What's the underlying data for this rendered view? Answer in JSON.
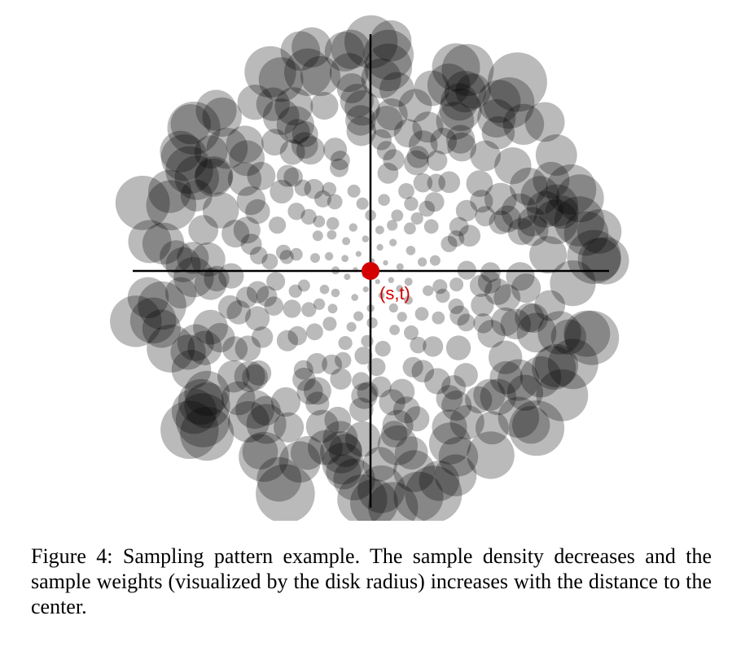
{
  "figure": {
    "center_label": "(s,t)",
    "colors": {
      "disk": "#000000",
      "center_marker": "#d40000",
      "axes": "#000000"
    }
  },
  "caption": {
    "text": "Figure 4: Sampling pattern example. The sample density decreases and the sample weights (visualized by the disk radius) increases with the distance to the center."
  }
}
